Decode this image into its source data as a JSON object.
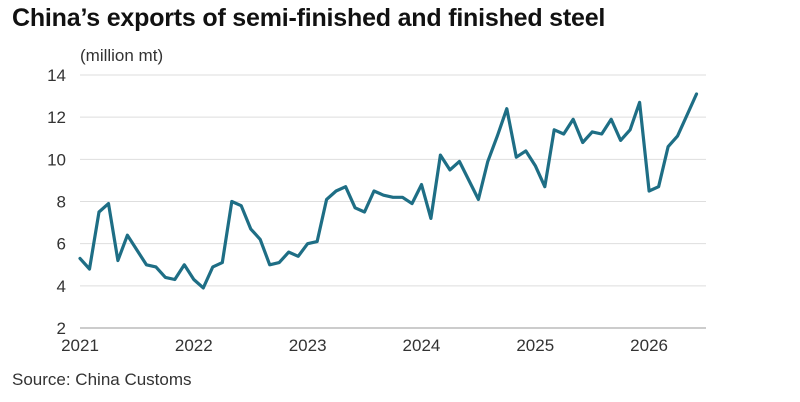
{
  "chart_data": {
    "type": "line",
    "title": "China’s exports of semi-finished and finished steel",
    "ylabel": "(million mt)",
    "source": "Source: China Customs",
    "x_tick_labels": [
      "2021",
      "2022",
      "2023",
      "2024",
      "2025",
      "2026"
    ],
    "y_tick_labels": [
      "2",
      "4",
      "6",
      "8",
      "10",
      "12",
      "14"
    ],
    "ylim": [
      2,
      14
    ],
    "grid": "horizontal",
    "color": "#1e6e85",
    "series": [
      {
        "x": [
          "2021-01",
          "2021-02",
          "2021-03",
          "2021-04",
          "2021-05",
          "2021-06",
          "2021-07",
          "2021-08",
          "2021-09",
          "2021-10",
          "2021-11",
          "2021-12",
          "2022-01",
          "2022-02",
          "2022-03",
          "2022-04",
          "2022-05",
          "2022-06",
          "2022-07",
          "2022-08",
          "2022-09",
          "2022-10",
          "2022-11",
          "2022-12",
          "2023-01",
          "2023-02",
          "2023-03",
          "2023-04",
          "2023-05",
          "2023-06",
          "2023-07",
          "2023-08",
          "2023-09",
          "2023-10",
          "2023-11",
          "2023-12",
          "2024-01",
          "2024-02",
          "2024-03",
          "2024-04",
          "2024-05",
          "2024-06",
          "2024-07",
          "2024-08",
          "2024-09",
          "2024-10",
          "2024-11",
          "2024-12",
          "2025-01",
          "2025-02",
          "2025-03",
          "2025-04",
          "2025-05",
          "2025-06",
          "2025-07",
          "2025-08",
          "2025-09",
          "2025-10",
          "2025-11",
          "2025-12",
          "2026-01",
          "2026-02",
          "2026-03",
          "2026-04",
          "2026-05",
          "2026-06"
        ],
        "values": [
          5.3,
          4.8,
          7.5,
          7.9,
          5.2,
          6.4,
          5.7,
          5.0,
          4.9,
          4.4,
          4.3,
          5.0,
          4.3,
          3.9,
          4.9,
          5.1,
          8.0,
          7.8,
          6.7,
          6.2,
          5.0,
          5.1,
          5.6,
          5.4,
          6.0,
          6.1,
          8.1,
          8.5,
          8.7,
          7.7,
          7.5,
          8.5,
          8.3,
          8.2,
          8.2,
          7.9,
          8.8,
          7.2,
          10.2,
          9.5,
          9.9,
          9.0,
          8.1,
          9.9,
          11.1,
          12.4,
          10.1,
          10.4,
          9.7,
          8.7,
          11.4,
          11.2,
          11.9,
          10.8,
          11.3,
          11.2,
          11.9,
          10.9,
          11.4,
          12.7,
          8.5,
          8.7,
          10.6,
          11.1,
          12.1,
          13.1
        ]
      }
    ]
  }
}
